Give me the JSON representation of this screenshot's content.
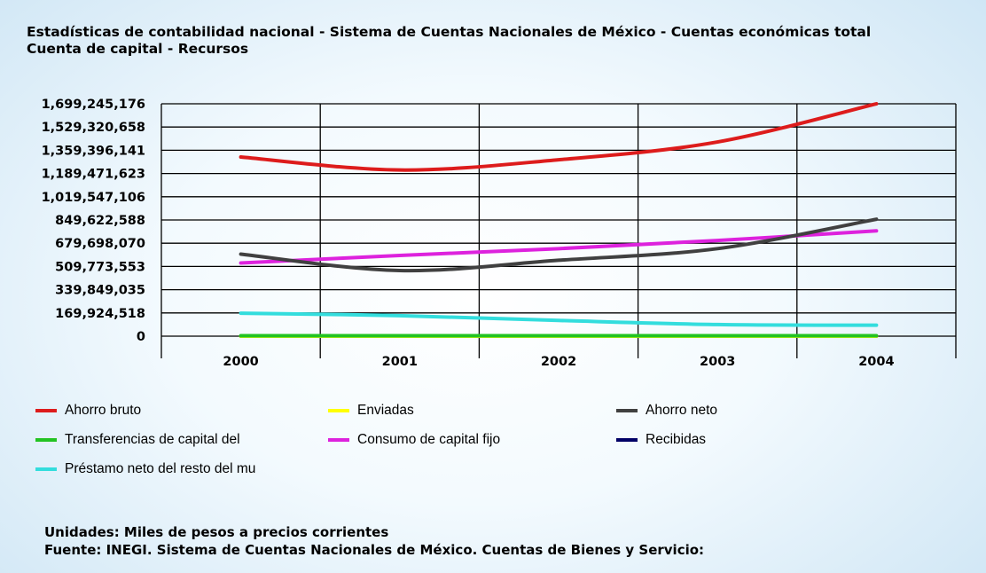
{
  "chart_data": {
    "type": "line",
    "title": "Estadísticas de contabilidad nacional - Sistema de Cuentas Nacionales de México - Cuentas económicas total",
    "subtitle": "Cuenta de capital - Recursos",
    "categories": [
      "2000",
      "2001",
      "2002",
      "2003",
      "2004"
    ],
    "y_ticks": [
      "0",
      "169,924,518",
      "339,849,035",
      "509,773,553",
      "679,698,070",
      "849,622,588",
      "1,019,547,106",
      "1,189,471,623",
      "1,359,396,141",
      "1,529,320,658",
      "1,699,245,176"
    ],
    "ylim": [
      0,
      1699245176
    ],
    "grid": true,
    "legend_position": "bottom",
    "series": [
      {
        "name": "Ahorro bruto",
        "color": "#dd1c1c",
        "values": [
          1310000000,
          1215000000,
          1290000000,
          1420000000,
          1699000000
        ]
      },
      {
        "name": "Enviadas",
        "color": "#ffff00",
        "values": [
          0,
          0,
          0,
          0,
          0
        ]
      },
      {
        "name": "Ahorro neto",
        "color": "#404040",
        "values": [
          600000000,
          480000000,
          555000000,
          640000000,
          855000000
        ]
      },
      {
        "name": "Transferencias de capital del",
        "color": "#22c322",
        "values": [
          3000000,
          3000000,
          3000000,
          3000000,
          3000000
        ]
      },
      {
        "name": "Consumo de capital fijo",
        "color": "#dd22dd",
        "values": [
          535000000,
          590000000,
          640000000,
          700000000,
          770000000
        ]
      },
      {
        "name": "Recibidas",
        "color": "#000066",
        "values": [
          0,
          0,
          0,
          0,
          0
        ]
      },
      {
        "name": "Préstamo neto del resto del mu",
        "color": "#33dddd",
        "values": [
          168000000,
          150000000,
          115000000,
          85000000,
          80000000
        ]
      }
    ],
    "units": "Unidades: Miles de pesos a precios corrientes",
    "source": "Fuente: INEGI. Sistema de Cuentas Nacionales de México. Cuentas de Bienes y Servicio:"
  }
}
